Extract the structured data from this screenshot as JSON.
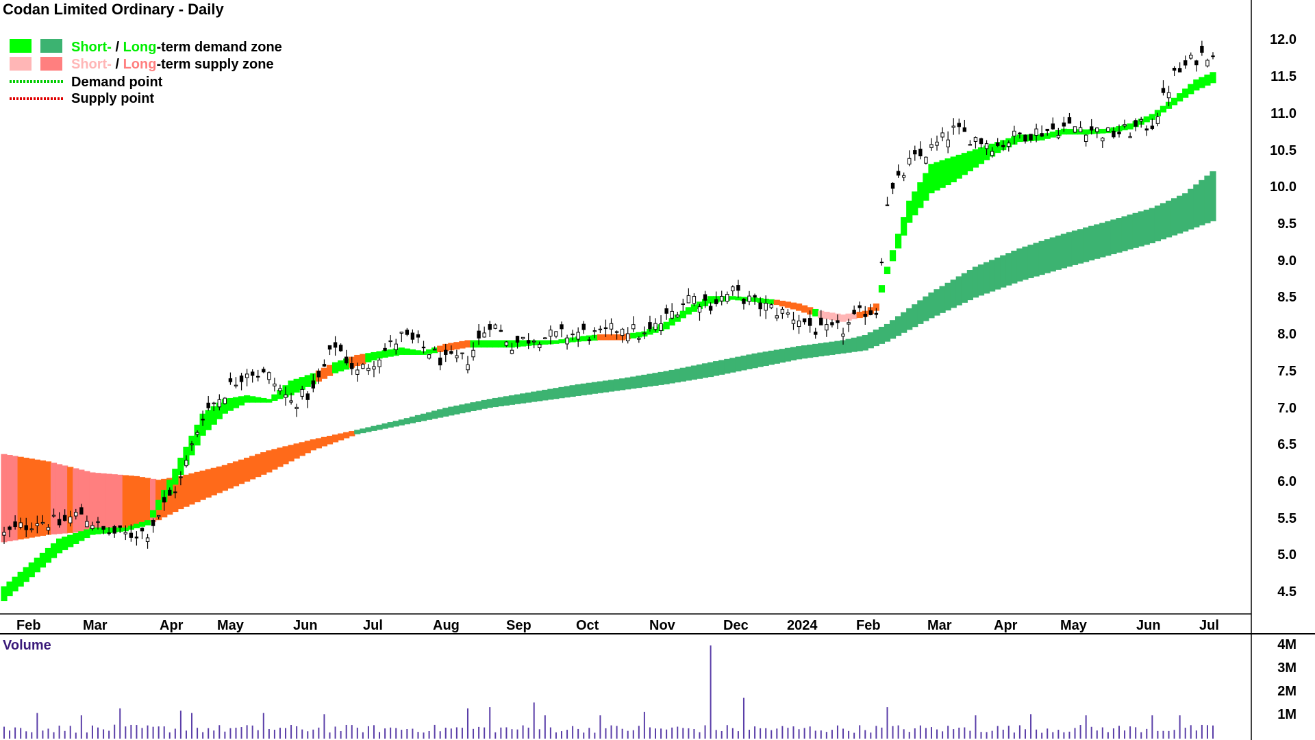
{
  "title": "Codan Limited Ordinary - Daily",
  "legend": {
    "short_word": "Short-",
    "long_word": "Long",
    "slash": " / ",
    "demand_suffix": "-term demand zone",
    "supply_suffix": "-term supply zone",
    "demand_point": "Demand point",
    "supply_point": "Supply point"
  },
  "colors": {
    "short_demand": "#00ff00",
    "long_demand": "#3cb371",
    "short_supply": "#ffb6b6",
    "long_supply": "#ff7f7f",
    "orange_supply": "#ff6a1a",
    "demand_point": "#00cc00",
    "supply_point": "#e00000",
    "volume_bar": "#5a3ea8",
    "volume_label": "#3a1a7a"
  },
  "chart_data": {
    "type": "candlestick",
    "period": "Daily",
    "months": [
      "Feb",
      "Mar",
      "Apr",
      "May",
      "Jun",
      "Jul",
      "Aug",
      "Sep",
      "Oct",
      "Nov",
      "Dec",
      "2024",
      "Feb",
      "Mar",
      "Apr",
      "May",
      "Jun",
      "Jul"
    ],
    "price_ticks": [
      "12.0",
      "11.5",
      "11.0",
      "10.5",
      "10.0",
      "9.5",
      "9.0",
      "8.5",
      "8.0",
      "7.5",
      "7.0",
      "6.5",
      "6.0",
      "5.5",
      "5.0",
      "4.5"
    ],
    "price_tick_values": [
      12.0,
      11.5,
      11.0,
      10.5,
      10.0,
      9.5,
      9.0,
      8.5,
      8.0,
      7.5,
      7.0,
      6.5,
      6.0,
      5.5,
      5.0,
      4.5
    ],
    "ylim": [
      4.2,
      12.5
    ],
    "volume_label": "Volume",
    "volume_ticks": [
      "4M",
      "3M",
      "2M",
      "1M"
    ],
    "volume_tick_values": [
      4,
      3,
      2,
      1
    ],
    "volume_unit": "M",
    "close_path": [
      [
        0,
        5.25
      ],
      [
        6,
        5.45
      ],
      [
        10,
        5.4
      ],
      [
        14,
        5.55
      ],
      [
        18,
        5.3
      ],
      [
        22,
        5.25
      ],
      [
        26,
        5.3
      ],
      [
        32,
        6.0
      ],
      [
        36,
        6.9
      ],
      [
        40,
        7.2
      ],
      [
        44,
        7.5
      ],
      [
        48,
        7.4
      ],
      [
        52,
        7.05
      ],
      [
        56,
        7.2
      ],
      [
        60,
        7.85
      ],
      [
        64,
        7.45
      ],
      [
        68,
        7.7
      ],
      [
        72,
        7.95
      ],
      [
        76,
        7.8
      ],
      [
        80,
        7.6
      ],
      [
        84,
        7.65
      ],
      [
        88,
        8.15
      ],
      [
        92,
        7.85
      ],
      [
        96,
        7.95
      ],
      [
        100,
        7.95
      ],
      [
        104,
        8.0
      ],
      [
        108,
        7.95
      ],
      [
        112,
        8.1
      ],
      [
        116,
        7.95
      ],
      [
        120,
        8.2
      ],
      [
        124,
        8.5
      ],
      [
        128,
        8.4
      ],
      [
        132,
        8.55
      ],
      [
        136,
        8.4
      ],
      [
        140,
        8.3
      ],
      [
        144,
        8.2
      ],
      [
        148,
        8.0
      ],
      [
        152,
        8.05
      ],
      [
        156,
        8.3
      ],
      [
        158,
        8.3
      ],
      [
        160,
        9.8
      ],
      [
        164,
        10.3
      ],
      [
        168,
        10.5
      ],
      [
        172,
        10.75
      ],
      [
        176,
        10.65
      ],
      [
        180,
        10.55
      ],
      [
        184,
        10.7
      ],
      [
        188,
        10.75
      ],
      [
        192,
        10.8
      ],
      [
        196,
        10.8
      ],
      [
        200,
        10.7
      ],
      [
        204,
        10.75
      ],
      [
        208,
        10.85
      ],
      [
        212,
        11.5
      ],
      [
        216,
        11.75
      ],
      [
        219,
        11.85
      ]
    ],
    "short_zone_path": [
      [
        0,
        4.35,
        4.55
      ],
      [
        10,
        5.0,
        5.2
      ],
      [
        16,
        5.25,
        5.35
      ],
      [
        22,
        5.3,
        5.35
      ],
      [
        26,
        5.38,
        5.45
      ],
      [
        30,
        5.8,
        6.0
      ],
      [
        36,
        6.6,
        6.9
      ],
      [
        40,
        6.9,
        7.1
      ],
      [
        44,
        7.05,
        7.15
      ],
      [
        48,
        7.05,
        7.1
      ],
      [
        52,
        7.15,
        7.35
      ],
      [
        56,
        7.3,
        7.45
      ],
      [
        60,
        7.45,
        7.6
      ],
      [
        64,
        7.55,
        7.7
      ],
      [
        68,
        7.65,
        7.75
      ],
      [
        72,
        7.7,
        7.8
      ],
      [
        76,
        7.7,
        7.75
      ],
      [
        80,
        7.75,
        7.85
      ],
      [
        84,
        7.8,
        7.9
      ],
      [
        88,
        7.8,
        7.9
      ],
      [
        92,
        7.8,
        7.9
      ],
      [
        96,
        7.83,
        7.9
      ],
      [
        100,
        7.85,
        7.9
      ],
      [
        104,
        7.88,
        7.95
      ],
      [
        108,
        7.9,
        7.98
      ],
      [
        112,
        7.9,
        7.98
      ],
      [
        116,
        7.95,
        8.02
      ],
      [
        120,
        8.05,
        8.15
      ],
      [
        124,
        8.25,
        8.35
      ],
      [
        128,
        8.4,
        8.5
      ],
      [
        132,
        8.45,
        8.5
      ],
      [
        136,
        8.42,
        8.48
      ],
      [
        140,
        8.38,
        8.45
      ],
      [
        144,
        8.3,
        8.4
      ],
      [
        148,
        8.2,
        8.3
      ],
      [
        152,
        8.15,
        8.25
      ],
      [
        156,
        8.22,
        8.3
      ],
      [
        158,
        8.3,
        8.4
      ],
      [
        160,
        8.8,
        8.9
      ],
      [
        164,
        9.5,
        9.8
      ],
      [
        168,
        9.9,
        10.3
      ],
      [
        172,
        10.05,
        10.4
      ],
      [
        176,
        10.25,
        10.5
      ],
      [
        180,
        10.45,
        10.6
      ],
      [
        184,
        10.6,
        10.7
      ],
      [
        188,
        10.62,
        10.7
      ],
      [
        192,
        10.7,
        10.78
      ],
      [
        196,
        10.7,
        10.77
      ],
      [
        200,
        10.72,
        10.78
      ],
      [
        204,
        10.77,
        10.85
      ],
      [
        208,
        10.9,
        10.98
      ],
      [
        212,
        11.1,
        11.2
      ],
      [
        216,
        11.3,
        11.45
      ],
      [
        219,
        11.4,
        11.55
      ]
    ],
    "long_zone_path": [
      [
        0,
        6.35,
        5.15
      ],
      [
        8,
        6.25,
        5.25
      ],
      [
        16,
        6.1,
        5.3
      ],
      [
        24,
        6.05,
        5.35
      ],
      [
        28,
        6.0,
        5.45
      ],
      [
        32,
        6.05,
        5.6
      ],
      [
        40,
        6.2,
        5.85
      ],
      [
        48,
        6.4,
        6.1
      ],
      [
        56,
        6.55,
        6.4
      ],
      [
        64,
        6.68,
        6.62
      ],
      [
        72,
        6.82,
        6.74
      ],
      [
        80,
        6.98,
        6.86
      ],
      [
        88,
        7.1,
        6.98
      ],
      [
        96,
        7.2,
        7.06
      ],
      [
        104,
        7.3,
        7.14
      ],
      [
        112,
        7.38,
        7.22
      ],
      [
        120,
        7.48,
        7.3
      ],
      [
        128,
        7.6,
        7.4
      ],
      [
        136,
        7.72,
        7.52
      ],
      [
        144,
        7.82,
        7.64
      ],
      [
        152,
        7.9,
        7.72
      ],
      [
        156,
        7.97,
        7.76
      ],
      [
        160,
        8.12,
        7.88
      ],
      [
        168,
        8.55,
        8.2
      ],
      [
        176,
        8.9,
        8.48
      ],
      [
        184,
        9.15,
        8.7
      ],
      [
        192,
        9.35,
        8.88
      ],
      [
        200,
        9.52,
        9.05
      ],
      [
        208,
        9.7,
        9.22
      ],
      [
        214,
        9.9,
        9.38
      ],
      [
        219,
        10.2,
        9.52
      ]
    ],
    "spikes": [
      [
        6,
        1.1
      ],
      [
        14,
        1.0
      ],
      [
        21,
        1.3
      ],
      [
        32,
        1.2
      ],
      [
        34,
        1.1
      ],
      [
        47,
        1.1
      ],
      [
        58,
        1.05
      ],
      [
        84,
        1.3
      ],
      [
        88,
        1.35
      ],
      [
        96,
        1.55
      ],
      [
        98,
        1.0
      ],
      [
        108,
        1.0
      ],
      [
        116,
        1.15
      ],
      [
        128,
        4.0
      ],
      [
        134,
        1.75
      ],
      [
        160,
        1.35
      ],
      [
        176,
        1.0
      ],
      [
        186,
        1.05
      ],
      [
        196,
        1.0
      ],
      [
        208,
        1.0
      ],
      [
        213,
        1.0
      ]
    ]
  }
}
